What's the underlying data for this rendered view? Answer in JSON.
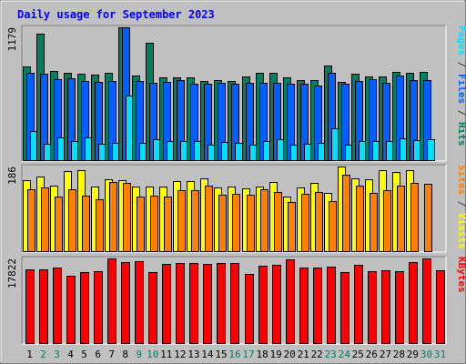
{
  "chart_data": {
    "type": "bar",
    "title": "Daily usage for September 2023",
    "x": [
      "1",
      "2",
      "3",
      "4",
      "5",
      "6",
      "7",
      "8",
      "9",
      "10",
      "11",
      "12",
      "13",
      "14",
      "15",
      "16",
      "17",
      "18",
      "19",
      "20",
      "21",
      "22",
      "23",
      "24",
      "25",
      "26",
      "27",
      "28",
      "29",
      "30",
      "31"
    ],
    "weekend_days": [
      "2",
      "3",
      "9",
      "10",
      "16",
      "17",
      "23",
      "24",
      "30",
      "31"
    ],
    "panels": [
      {
        "name": "hits_files_pages",
        "ymax_label": "1179",
        "ylim": [
          0,
          1179
        ],
        "right_label_parts": [
          {
            "text": "Pages",
            "color": "#00e0ff"
          },
          {
            "text": " / ",
            "color": "#404040"
          },
          {
            "text": "Files",
            "color": "#0060ff"
          },
          {
            "text": " / ",
            "color": "#404040"
          },
          {
            "text": "Hits",
            "color": "#008060"
          }
        ],
        "series": [
          {
            "name": "Hits",
            "color": "#008060",
            "values": [
              832,
              1119,
              793,
              776,
              768,
              759,
              776,
              1179,
              754,
              1042,
              739,
              739,
              735,
              709,
              714,
              707,
              746,
              776,
              776,
              735,
              714,
              714,
              839,
              696,
              766,
              749,
              746,
              788,
              776,
              783,
              0
            ]
          },
          {
            "name": "Files",
            "color": "#0060ff",
            "values": [
              778,
              766,
              725,
              729,
              708,
              696,
              706,
              1179,
              708,
              691,
              695,
              714,
              683,
              684,
              692,
              679,
              691,
              686,
              686,
              683,
              681,
              668,
              777,
              681,
              704,
              724,
              693,
              754,
              710,
              713,
              0
            ]
          },
          {
            "name": "Pages",
            "color": "#00e0ff",
            "values": [
              263,
              156,
              206,
              174,
              208,
              156,
              163,
              581,
              164,
              196,
              174,
              176,
              175,
              142,
              166,
              159,
              145,
              178,
              196,
              141,
              155,
              157,
              287,
              148,
              178,
              175,
              175,
              203,
              182,
              194,
              0
            ]
          }
        ]
      },
      {
        "name": "visits_sites",
        "ymax_label": "186",
        "ylim": [
          0,
          186
        ],
        "right_label_parts": [
          {
            "text": "Sites",
            "color": "#ff8000"
          },
          {
            "text": " / ",
            "color": "#404040"
          },
          {
            "text": "Visits",
            "color": "#ffff00"
          }
        ],
        "series": [
          {
            "name": "Visits",
            "color": "#ffff00",
            "values": [
              156,
              165,
              144,
              177,
              178,
              142,
              158,
              157,
              142,
              142,
              142,
              155,
              155,
              161,
              140,
              142,
              138,
              143,
              153,
              121,
              141,
              151,
              129,
              186,
              161,
              158,
              178,
              175,
              178,
              0,
              0
            ]
          },
          {
            "name": "Sites",
            "color": "#ff8000",
            "values": [
              136,
              141,
              120,
              136,
              123,
              114,
              153,
              150,
              121,
              123,
              121,
              135,
              135,
              144,
              125,
              126,
              124,
              136,
              131,
              109,
              127,
              131,
              111,
              168,
              144,
              129,
              134,
              144,
              150,
              148,
              0
            ]
          }
        ]
      },
      {
        "name": "kbytes",
        "ymax_label": "17822",
        "ylim": [
          0,
          17822
        ],
        "right_label_parts": [
          {
            "text": "KBytes",
            "color": "#ff0000"
          }
        ],
        "series": [
          {
            "name": "KBytes",
            "color": "#ff0000",
            "values": [
              15600,
              15600,
              15900,
              14300,
              15000,
              15200,
              17800,
              17100,
              17300,
              14900,
              16700,
              16800,
              16900,
              16700,
              16900,
              16800,
              14600,
              16400,
              16500,
              17600,
              15900,
              15900,
              16200,
              15000,
              16500,
              15200,
              15300,
              15200,
              17100,
              17800,
              15300
            ]
          }
        ]
      }
    ]
  }
}
